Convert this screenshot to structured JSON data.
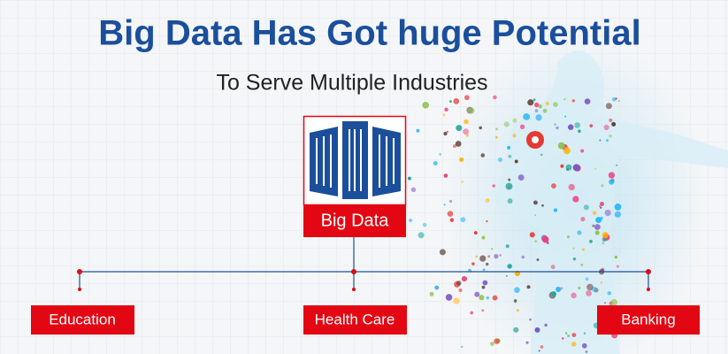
{
  "header": {
    "title": "Big Data Has Got huge Potential",
    "subtitle": "To Serve Multiple Industries"
  },
  "root_node": {
    "label": "Big Data"
  },
  "nodes": [
    {
      "label": "Education"
    },
    {
      "label": "Health Care"
    },
    {
      "label": "Banking"
    }
  ]
}
